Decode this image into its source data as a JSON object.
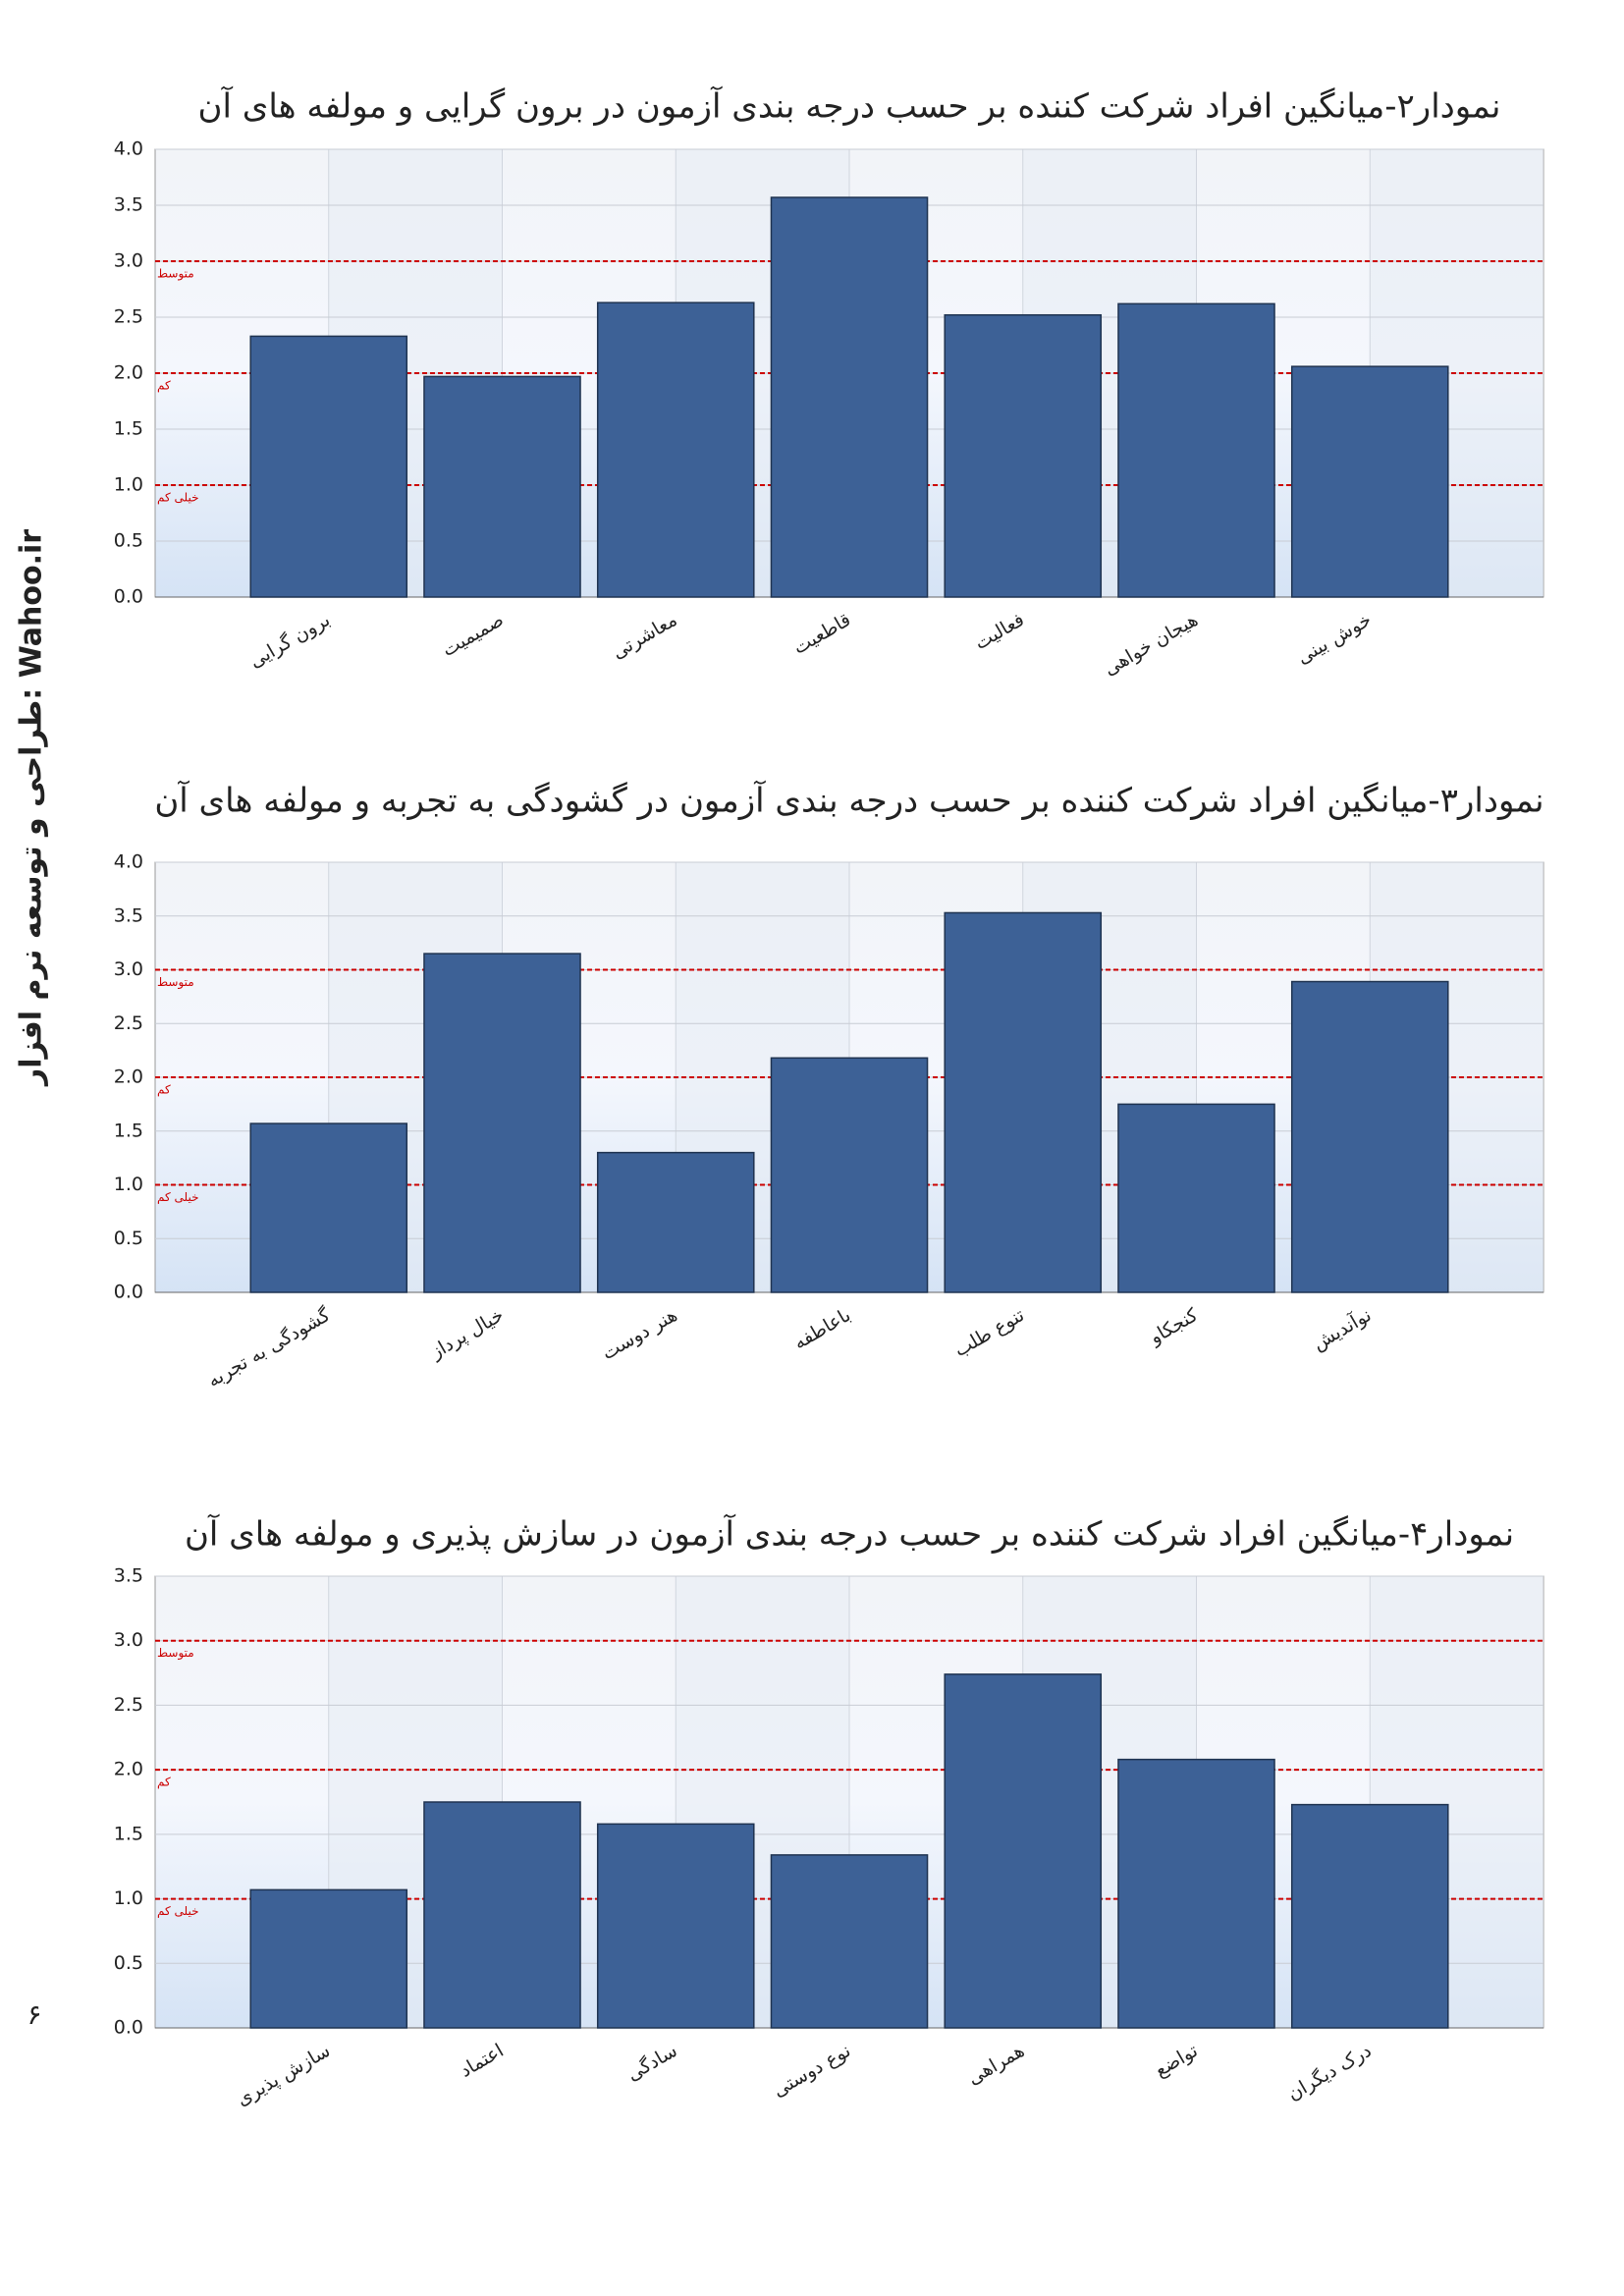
{
  "side_text": "طراحی و توسعه نرم افزار: Wahoo.ir",
  "page_number": "۶",
  "chart_data": [
    {
      "type": "bar",
      "title": "نمودار۲-میانگین افراد شرکت کننده بر حسب درجه بندی آزمون در برون گرایی و مولفه های آن",
      "categories": [
        "برون گرایی",
        "صمیمیت",
        "معاشرتی",
        "قاطعیت",
        "فعالیت",
        "هیجان خواهی",
        "خوش بینی"
      ],
      "values": [
        2.33,
        1.97,
        2.63,
        3.57,
        2.52,
        2.62,
        2.06
      ],
      "color": "#3d6196",
      "ylim": [
        0,
        4
      ],
      "yticks": [
        {
          "value": 0,
          "label": "0.0"
        },
        {
          "value": 0.5,
          "label": "0.5"
        },
        {
          "value": 1,
          "label": "1.0"
        },
        {
          "value": 1.5,
          "label": "1.5"
        },
        {
          "value": 2,
          "label": "2.0"
        },
        {
          "value": 2.5,
          "label": "2.5"
        },
        {
          "value": 3,
          "label": "3.0"
        },
        {
          "value": 3.5,
          "label": "3.5"
        },
        {
          "value": 4,
          "label": "4.0"
        }
      ],
      "grid": true,
      "reference_color": "#cc0000",
      "reference_lines": [
        {
          "value": 3,
          "label": "متوسط"
        },
        {
          "value": 2,
          "label": "کم"
        },
        {
          "value": 1,
          "label": "خیلی کم"
        }
      ]
    },
    {
      "type": "bar",
      "title": "نمودار۳-میانگین افراد شرکت کننده بر حسب درجه بندی آزمون در گشودگی به تجربه و مولفه های آن",
      "categories": [
        "گشودگی به تجربه",
        "خیال پرداز",
        "هنر دوست",
        "باعاطفه",
        "تنوع طلب",
        "کنجکاو",
        "نوآندیش"
      ],
      "values": [
        1.57,
        3.15,
        1.3,
        2.18,
        3.53,
        1.75,
        2.89
      ],
      "color": "#3d6196",
      "ylim": [
        0,
        4
      ],
      "yticks": [
        {
          "value": 0,
          "label": "0.0"
        },
        {
          "value": 0.5,
          "label": "0.5"
        },
        {
          "value": 1,
          "label": "1.0"
        },
        {
          "value": 1.5,
          "label": "1.5"
        },
        {
          "value": 2,
          "label": "2.0"
        },
        {
          "value": 2.5,
          "label": "2.5"
        },
        {
          "value": 3,
          "label": "3.0"
        },
        {
          "value": 3.5,
          "label": "3.5"
        },
        {
          "value": 4,
          "label": "4.0"
        }
      ],
      "grid": true,
      "reference_color": "#cc0000",
      "reference_lines": [
        {
          "value": 3,
          "label": "متوسط"
        },
        {
          "value": 2,
          "label": "کم"
        },
        {
          "value": 1,
          "label": "خیلی کم"
        }
      ]
    },
    {
      "type": "bar",
      "title": "نمودار۴-میانگین افراد شرکت کننده بر حسب درجه بندی آزمون در سازش پذیری و مولفه های آن",
      "categories": [
        "سازش پذیری",
        "اعتماد",
        "سادگی",
        "نوع دوستی",
        "همراهی",
        "تواضع",
        "درک دیگران"
      ],
      "values": [
        1.07,
        1.75,
        1.58,
        1.34,
        2.74,
        2.08,
        1.73
      ],
      "color": "#3d6196",
      "ylim": [
        0,
        3.5
      ],
      "yticks": [
        {
          "value": 0,
          "label": "0.0"
        },
        {
          "value": 0.5,
          "label": "0.5"
        },
        {
          "value": 1,
          "label": "1.0"
        },
        {
          "value": 1.5,
          "label": "1.5"
        },
        {
          "value": 2,
          "label": "2.0"
        },
        {
          "value": 2.5,
          "label": "2.5"
        },
        {
          "value": 3,
          "label": "3.0"
        },
        {
          "value": 3.5,
          "label": "3.5"
        }
      ],
      "grid": true,
      "reference_color": "#cc0000",
      "reference_lines": [
        {
          "value": 3,
          "label": "متوسط"
        },
        {
          "value": 2,
          "label": "کم"
        },
        {
          "value": 1,
          "label": "خیلی کم"
        }
      ]
    }
  ]
}
